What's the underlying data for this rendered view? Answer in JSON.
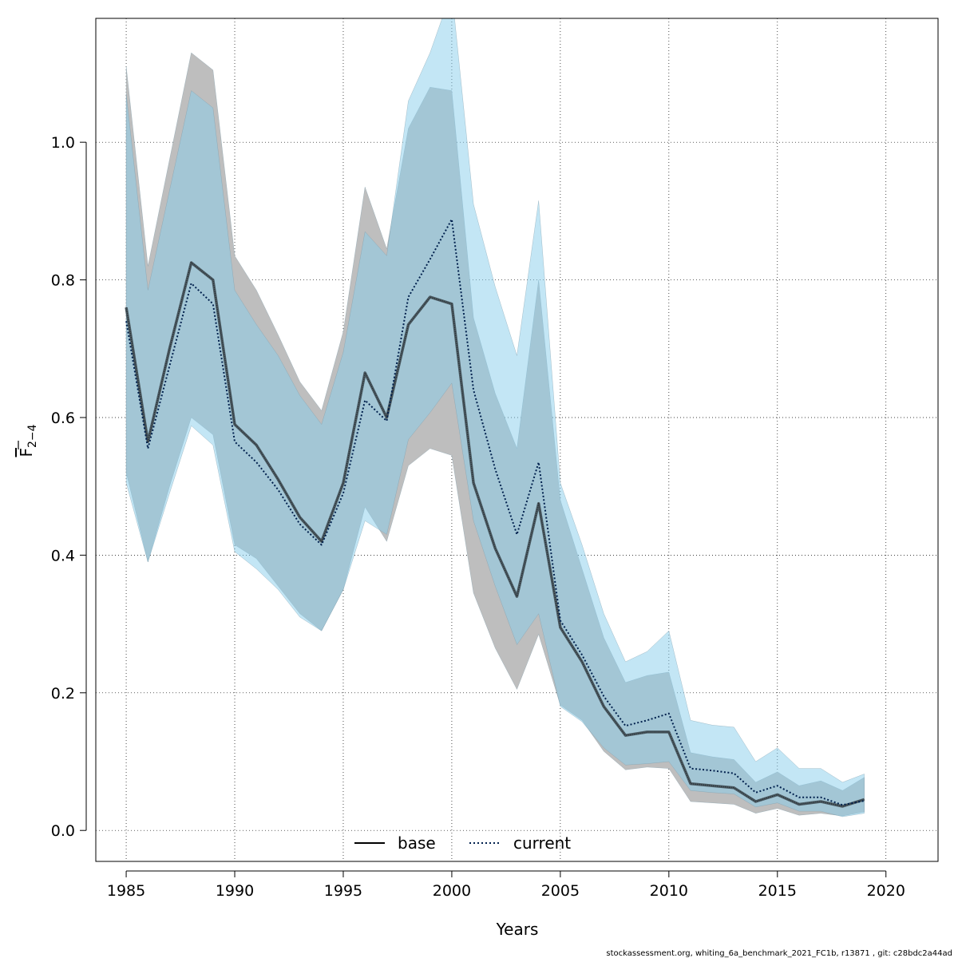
{
  "chart_data": {
    "type": "line",
    "xlabel": "Years",
    "ylabel": {
      "main": "F",
      "sub": "2−4"
    },
    "xlim": [
      1983.6,
      2022.4
    ],
    "ylim": [
      -0.045,
      1.18
    ],
    "xticks": [
      1985,
      1990,
      1995,
      2000,
      2005,
      2010,
      2015,
      2020
    ],
    "yticks": [
      0.0,
      0.2,
      0.4,
      0.6,
      0.8,
      1.0
    ],
    "ytick_labels": [
      "0.0",
      "0.2",
      "0.4",
      "0.6",
      "0.8",
      "1.0"
    ],
    "grid": true,
    "legend_position": "bottom-center",
    "footer": "stockassessment.org, whiting_6a_benchmark_2021_FC1b, r13871 , git: c28bdc2a44ad",
    "x": [
      1985,
      1986,
      1987,
      1988,
      1989,
      1990,
      1991,
      1992,
      1993,
      1994,
      1995,
      1996,
      1997,
      1998,
      1999,
      2000,
      2001,
      2002,
      2003,
      2004,
      2005,
      2006,
      2007,
      2008,
      2009,
      2010,
      2011,
      2012,
      2013,
      2014,
      2015,
      2016,
      2017,
      2018,
      2019
    ],
    "series": [
      {
        "name": "base",
        "color": "#000000",
        "band_color": "#bebebe",
        "line_style": "solid",
        "values": [
          0.76,
          0.565,
          0.7,
          0.825,
          0.8,
          0.59,
          0.56,
          0.51,
          0.455,
          0.42,
          0.505,
          0.665,
          0.6,
          0.735,
          0.775,
          0.765,
          0.505,
          0.41,
          0.34,
          0.475,
          0.295,
          0.245,
          0.18,
          0.138,
          0.143,
          0.143,
          0.068,
          0.065,
          0.062,
          0.042,
          0.052,
          0.038,
          0.042,
          0.035,
          0.045
        ],
        "lower": [
          0.52,
          0.39,
          0.5,
          0.6,
          0.575,
          0.415,
          0.395,
          0.355,
          0.315,
          0.29,
          0.35,
          0.47,
          0.42,
          0.53,
          0.555,
          0.545,
          0.345,
          0.265,
          0.205,
          0.285,
          0.182,
          0.16,
          0.115,
          0.088,
          0.092,
          0.09,
          0.042,
          0.04,
          0.038,
          0.025,
          0.032,
          0.022,
          0.025,
          0.021,
          0.027
        ],
        "upper": [
          1.11,
          0.82,
          0.975,
          1.13,
          1.105,
          0.835,
          0.785,
          0.72,
          0.652,
          0.61,
          0.725,
          0.935,
          0.845,
          1.02,
          1.08,
          1.075,
          0.745,
          0.635,
          0.555,
          0.8,
          0.48,
          0.38,
          0.28,
          0.215,
          0.225,
          0.23,
          0.113,
          0.107,
          0.103,
          0.07,
          0.085,
          0.065,
          0.072,
          0.058,
          0.077
        ]
      },
      {
        "name": "current",
        "color": "#00204d",
        "band_color": "#87ceeb",
        "line_style": "dotted",
        "values": [
          0.74,
          0.555,
          0.675,
          0.795,
          0.765,
          0.565,
          0.535,
          0.495,
          0.445,
          0.415,
          0.49,
          0.625,
          0.595,
          0.775,
          0.83,
          0.888,
          0.64,
          0.525,
          0.43,
          0.535,
          0.305,
          0.255,
          0.195,
          0.152,
          0.16,
          0.17,
          0.09,
          0.087,
          0.083,
          0.055,
          0.065,
          0.048,
          0.048,
          0.037,
          0.043
        ],
        "lower": [
          0.505,
          0.39,
          0.49,
          0.588,
          0.56,
          0.405,
          0.38,
          0.35,
          0.31,
          0.29,
          0.35,
          0.45,
          0.43,
          0.568,
          0.607,
          0.65,
          0.45,
          0.355,
          0.27,
          0.315,
          0.18,
          0.158,
          0.12,
          0.095,
          0.097,
          0.1,
          0.058,
          0.055,
          0.053,
          0.034,
          0.04,
          0.028,
          0.028,
          0.02,
          0.025
        ],
        "upper": [
          1.07,
          0.785,
          0.93,
          1.075,
          1.05,
          0.785,
          0.735,
          0.69,
          0.632,
          0.59,
          0.695,
          0.87,
          0.835,
          1.06,
          1.13,
          1.22,
          0.91,
          0.79,
          0.69,
          0.915,
          0.505,
          0.415,
          0.315,
          0.245,
          0.26,
          0.29,
          0.16,
          0.153,
          0.15,
          0.1,
          0.12,
          0.09,
          0.09,
          0.07,
          0.082
        ]
      }
    ]
  }
}
